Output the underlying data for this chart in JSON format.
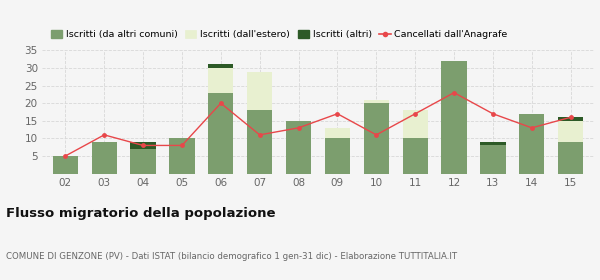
{
  "categories": [
    "02",
    "03",
    "04",
    "05",
    "06",
    "07",
    "08",
    "09",
    "10",
    "11",
    "12",
    "13",
    "14",
    "15"
  ],
  "iscritti_altri_comuni": [
    5,
    9,
    7,
    10,
    23,
    18,
    15,
    10,
    20,
    10,
    32,
    8,
    17,
    9
  ],
  "iscritti_estero": [
    0,
    0,
    0,
    0,
    7,
    11,
    0,
    3,
    1,
    8,
    0,
    0,
    0,
    6
  ],
  "iscritti_altri": [
    0,
    0,
    2,
    0,
    1,
    0,
    0,
    0,
    0,
    0,
    0,
    1,
    0,
    1
  ],
  "cancellati": [
    5,
    11,
    8,
    8,
    20,
    11,
    13,
    17,
    11,
    17,
    23,
    17,
    13,
    16
  ],
  "color_altri_comuni": "#7c9e6e",
  "color_estero": "#e8f0d0",
  "color_altri": "#2d5a27",
  "color_cancellati": "#e8474a",
  "ylim": [
    0,
    35
  ],
  "yticks": [
    0,
    5,
    10,
    15,
    20,
    25,
    30,
    35
  ],
  "title": "Flusso migratorio della popolazione",
  "subtitle": "COMUNE DI GENZONE (PV) - Dati ISTAT (bilancio demografico 1 gen-31 dic) - Elaborazione TUTTITALIA.IT",
  "legend_labels": [
    "Iscritti (da altri comuni)",
    "Iscritti (dall'estero)",
    "Iscritti (altri)",
    "Cancellati dall'Anagrafe"
  ],
  "background_color": "#f5f5f5",
  "grid_color": "#d8d8d8"
}
